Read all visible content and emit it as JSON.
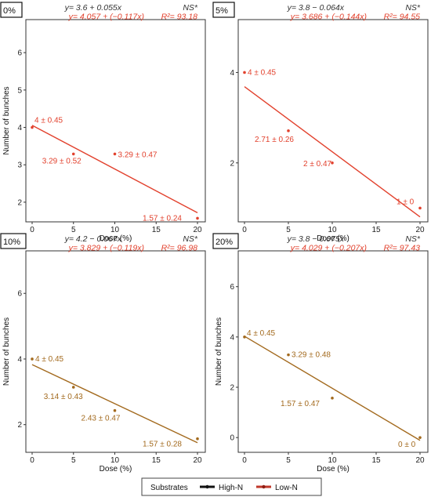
{
  "colors": {
    "red": "#e2412d",
    "brown": "#a36a1e",
    "eq_high": "#333333",
    "eq_low": "#e2412d",
    "high_n": "#111111",
    "low_n": "#c0392b"
  },
  "legend": {
    "title": "Substrates",
    "items": [
      "High-N",
      "Low-N"
    ]
  },
  "chart_data": [
    {
      "type": "scatter",
      "panel_tag": "0%",
      "xlabel": "Dose (%)",
      "ylabel": "Number of bunches",
      "xlim": [
        0,
        20
      ],
      "ylim": [
        1.6,
        6.8
      ],
      "xticks": [
        0,
        5,
        10,
        15,
        20
      ],
      "yticks": [
        2,
        3,
        4,
        5,
        6
      ],
      "eq_high": "y= 3.6 + 0.055x",
      "sig_high": "NS*",
      "eq_low": "y= 4.057 + (−0.117x)",
      "r2_low": "R²= 93.18",
      "line_color": "red",
      "fit": {
        "intercept": 4.057,
        "slope": -0.117
      },
      "points": [
        {
          "x": 0,
          "y": 4.0,
          "label": "4 ± 0.45"
        },
        {
          "x": 5,
          "y": 3.29,
          "label": "3.29 ± 0.52"
        },
        {
          "x": 10,
          "y": 3.29,
          "label": "3.29 ± 0.47"
        },
        {
          "x": 20,
          "y": 1.57,
          "label": "1.57 ± 0.24"
        }
      ]
    },
    {
      "type": "scatter",
      "panel_tag": "5%",
      "xlabel": "Dose (%)",
      "ylabel": "",
      "xlim": [
        0,
        20
      ],
      "ylim": [
        0.8,
        5.1
      ],
      "xticks": [
        0,
        5,
        10,
        15,
        20
      ],
      "yticks": [
        2,
        4
      ],
      "eq_high": "y= 3.8 − 0.064x",
      "sig_high": "NS*",
      "eq_low": "y= 3.686 + (−0.144x)",
      "r2_low": "R²= 94.55",
      "line_color": "red",
      "fit": {
        "intercept": 3.686,
        "slope": -0.144
      },
      "points": [
        {
          "x": 0,
          "y": 4.0,
          "label": "4 ± 0.45"
        },
        {
          "x": 5,
          "y": 2.71,
          "label": "2.71 ± 0.26"
        },
        {
          "x": 10,
          "y": 2.0,
          "label": "2 ± 0.47"
        },
        {
          "x": 20,
          "y": 1.0,
          "label": "1 ± 0"
        }
      ]
    },
    {
      "type": "scatter",
      "panel_tag": "10%",
      "xlabel": "Dose (%)",
      "ylabel": "Number of bunches",
      "xlim": [
        0,
        20
      ],
      "ylim": [
        1.3,
        7.2
      ],
      "xticks": [
        0,
        5,
        10,
        15,
        20
      ],
      "yticks": [
        2,
        4,
        6
      ],
      "eq_high": "y= 4.2 − 0.067x",
      "sig_high": "NS*",
      "eq_low": "y= 3.829 + (−0.119x)",
      "r2_low": "R²= 96.98",
      "line_color": "brown",
      "fit": {
        "intercept": 3.829,
        "slope": -0.119
      },
      "points": [
        {
          "x": 0,
          "y": 4.0,
          "label": "4 ± 0.45"
        },
        {
          "x": 5,
          "y": 3.14,
          "label": "3.14 ± 0.43"
        },
        {
          "x": 10,
          "y": 2.43,
          "label": "2.43 ± 0.47"
        },
        {
          "x": 20,
          "y": 1.57,
          "label": "1.57 ± 0.28"
        }
      ]
    },
    {
      "type": "scatter",
      "panel_tag": "20%",
      "xlabel": "Dose (%)",
      "ylabel": "Number of bunches",
      "xlim": [
        0,
        20
      ],
      "ylim": [
        -0.4,
        7.3
      ],
      "xticks": [
        0,
        5,
        10,
        15,
        20
      ],
      "yticks": [
        0,
        2,
        4,
        6
      ],
      "eq_high": "y= 3.8 − 0.075x",
      "sig_high": "NS*",
      "eq_low": "y= 4.029 + (−0.207x)",
      "r2_low": "R²= 97.43",
      "line_color": "brown",
      "fit": {
        "intercept": 4.029,
        "slope": -0.207
      },
      "points": [
        {
          "x": 0,
          "y": 4.0,
          "label": "4 ± 0.45"
        },
        {
          "x": 5,
          "y": 3.29,
          "label": "3.29 ± 0.48"
        },
        {
          "x": 10,
          "y": 1.57,
          "label": "1.57 ± 0.47"
        },
        {
          "x": 20,
          "y": 0.0,
          "label": "0 ± 0"
        }
      ]
    }
  ]
}
